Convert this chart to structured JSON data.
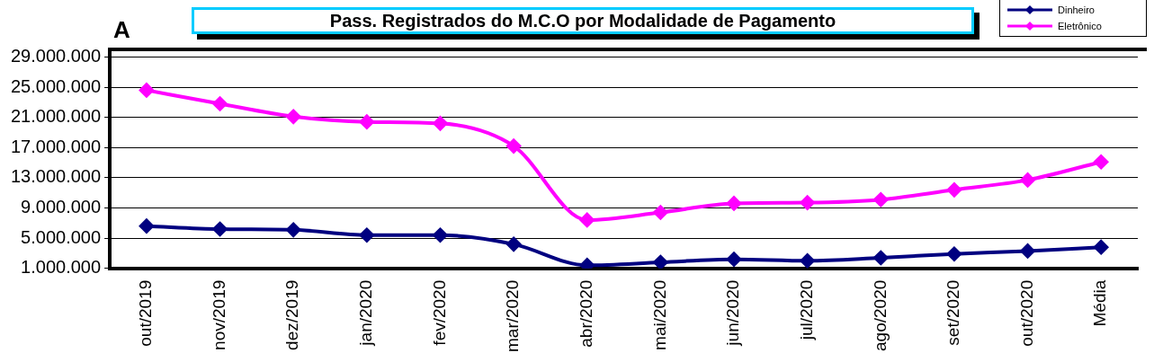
{
  "chart_data": {
    "type": "line",
    "title": "Pass. Registrados do M.C.O por Modalidade de Pagamento",
    "annotations": [
      "A"
    ],
    "categories": [
      "out/2019",
      "nov/2019",
      "dez/2019",
      "jan/2020",
      "fev/2020",
      "mar/2020",
      "abr/2020",
      "mai/2020",
      "jun/2020",
      "jul/2020",
      "ago/2020",
      "set/2020",
      "out/2020",
      "Média"
    ],
    "series": [
      {
        "name": "Dinheiro",
        "color": "#000080",
        "values": [
          6600000,
          6200000,
          6100000,
          5400000,
          5400000,
          4200000,
          1400000,
          1800000,
          2200000,
          2000000,
          2400000,
          2900000,
          3300000,
          3800000
        ]
      },
      {
        "name": "Eletrônico",
        "color": "#ff00ff",
        "values": [
          24600000,
          22800000,
          21100000,
          20400000,
          20200000,
          17200000,
          7400000,
          8400000,
          9600000,
          9700000,
          10100000,
          11400000,
          12700000,
          15100000
        ]
      }
    ],
    "ylim": [
      1000000,
      30000000
    ],
    "yticks": [
      {
        "value": 1000000,
        "label": "1.000.000"
      },
      {
        "value": 5000000,
        "label": "5.000.000"
      },
      {
        "value": 9000000,
        "label": "9.000.000"
      },
      {
        "value": 13000000,
        "label": "13.000.000"
      },
      {
        "value": 17000000,
        "label": "17.000.000"
      },
      {
        "value": 21000000,
        "label": "21.000.000"
      },
      {
        "value": 25000000,
        "label": "25.000.000"
      },
      {
        "value": 29000000,
        "label": "29.000.000"
      }
    ],
    "grid": "y",
    "legend": "top right",
    "marker": "diamond",
    "line_style": "solid"
  }
}
